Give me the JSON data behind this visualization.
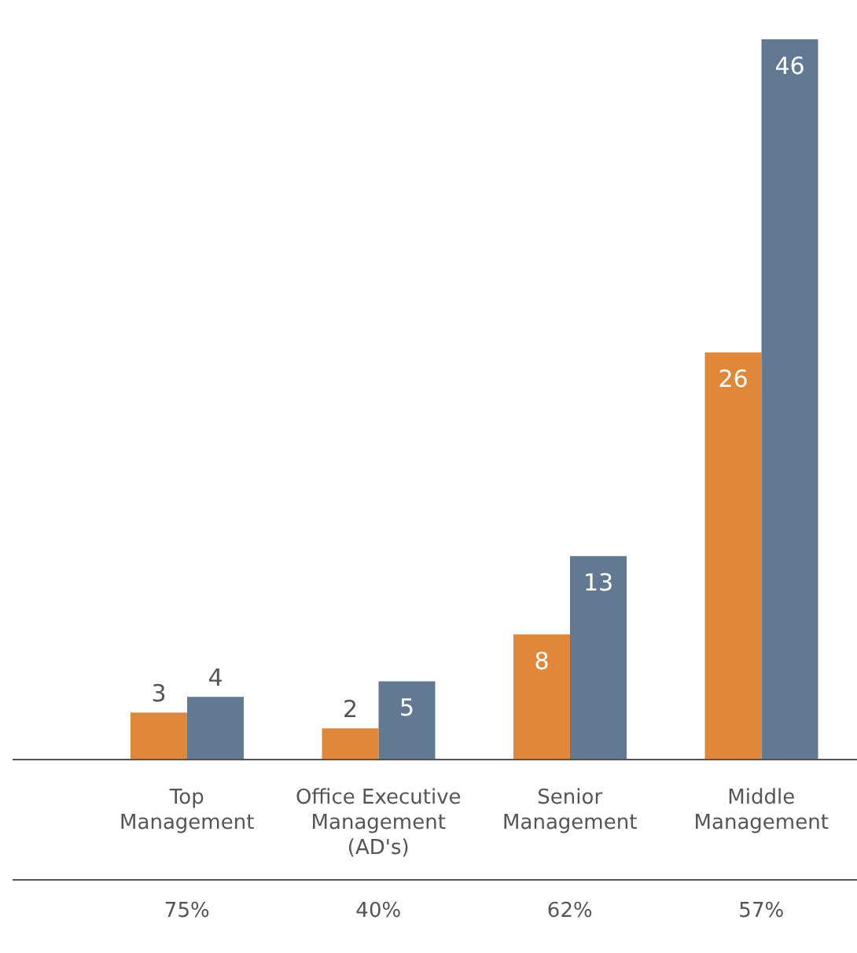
{
  "chart_data": {
    "type": "bar",
    "categories": [
      "Top\nManagement",
      "Office Executive\nManagement\n(AD's)",
      "Senior\nManagement",
      "Middle\nManagement"
    ],
    "series": [
      {
        "color": "#e0873a",
        "values": [
          3,
          2,
          8,
          26
        ]
      },
      {
        "color": "#627a91",
        "values": [
          4,
          5,
          13,
          46
        ]
      }
    ],
    "data_labels": true,
    "annotations": [
      "75%",
      "40%",
      "62%",
      "57%"
    ]
  }
}
